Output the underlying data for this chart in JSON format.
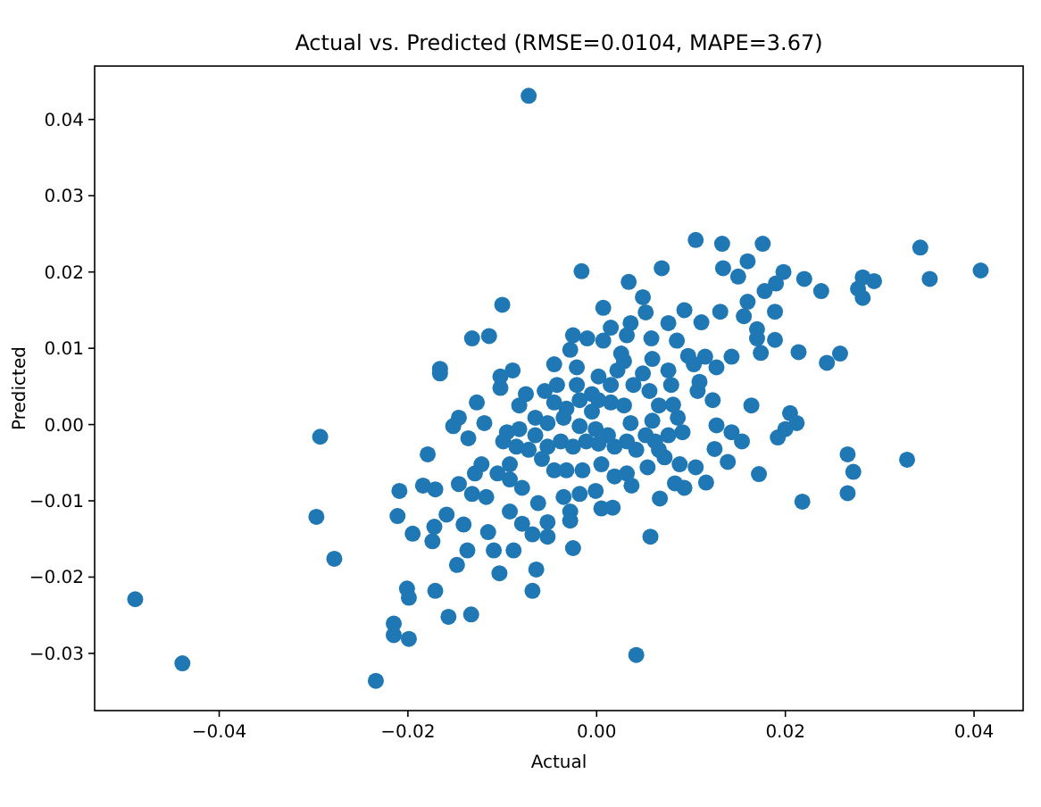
{
  "chart_data": {
    "type": "scatter",
    "title": "Actual vs. Predicted (RMSE=0.0104, MAPE=3.67)",
    "xlabel": "Actual",
    "ylabel": "Predicted",
    "marker": "circle",
    "xlim": [
      -0.0532,
      0.0452
    ],
    "ylim": [
      -0.0375,
      0.047
    ],
    "xticks": [
      {
        "value": -0.04,
        "label": "−0.04"
      },
      {
        "value": -0.02,
        "label": "−0.02"
      },
      {
        "value": 0,
        "label": "0.00"
      },
      {
        "value": 0.02,
        "label": "0.02"
      },
      {
        "value": 0.04,
        "label": "0.04"
      }
    ],
    "yticks": [
      {
        "value": -0.03,
        "label": "−0.03"
      },
      {
        "value": -0.02,
        "label": "−0.02"
      },
      {
        "value": -0.01,
        "label": "−0.01"
      },
      {
        "value": 0,
        "label": "0.00"
      },
      {
        "value": 0.01,
        "label": "0.01"
      },
      {
        "value": 0.02,
        "label": "0.02"
      },
      {
        "value": 0.03,
        "label": "0.03"
      },
      {
        "value": 0.04,
        "label": "0.04"
      }
    ],
    "series": [
      {
        "color": "#1f77b4",
        "x": [
          -0.0072,
          -0.0489,
          -0.0439,
          -0.0234,
          0.0042,
          -0.0293,
          -0.0297,
          -0.0278,
          0.0407,
          0.0343,
          0.0353,
          0.0329,
          0.0282,
          0.0294,
          0.0277,
          0.0282,
          0.0238,
          0.022,
          0.0198,
          0.019,
          0.0178,
          0.0176,
          0.016,
          0.015,
          0.0134,
          0.0133,
          0.0105,
          0.0069,
          0.0034,
          -0.0016,
          0.0049,
          0.0007,
          -0.01,
          -0.0132,
          -0.0114,
          -0.0166,
          -0.0166,
          0.0258,
          0.0244,
          0.0214,
          0.0189,
          0.0189,
          0.0174,
          0.017,
          0.016,
          0.0156,
          0.017,
          0.0131,
          0.0111,
          0.0093,
          0.0076,
          0.0085,
          0.0143,
          0.0127,
          0.0115,
          0.0103,
          0.0109,
          0.0123,
          0.0107,
          0.0164,
          0.0205,
          0.0212,
          0.0192,
          0.02,
          0.0154,
          0.0143,
          0.0127,
          0.0125,
          0.0139,
          0.0172,
          0.0116,
          0.0105,
          0.0093,
          0.0083,
          0.0067,
          0.0057,
          0.0218,
          0.0266,
          0.0272,
          0.0266,
          0.0088,
          0.0072,
          0.0054,
          0.0091,
          0.0086,
          0.0081,
          0.0079,
          0.0076,
          0.0059,
          0.0058,
          0.0052,
          0.0036,
          0.0032,
          0.0015,
          0.0007,
          -0.001,
          -0.0025,
          -0.0028,
          -0.0021,
          -0.0045,
          0.0026,
          0.0022,
          0.0002,
          0.0015,
          0.0039,
          0.0049,
          0.0056,
          0.0066,
          0.0059,
          0.0052,
          0.0062,
          0.0042,
          0.0032,
          0.0036,
          0.0029,
          0.0015,
          0.0002,
          -0.0005,
          -0.0018,
          -0.0032,
          -0.0045,
          -0.0055,
          -0.0065,
          -0.0052,
          -0.0035,
          -0.0018,
          -0.0001,
          0.0012,
          0.0019,
          0.0002,
          -0.0011,
          -0.0025,
          -0.0038,
          -0.0052,
          -0.0065,
          -0.0072,
          -0.0058,
          -0.0045,
          -0.0032,
          -0.0015,
          0.0005,
          0.0019,
          0.0032,
          0.0037,
          -0.0001,
          0.0005,
          0.0017,
          -0.0018,
          -0.0035,
          -0.0028,
          -0.0028,
          -0.0025,
          -0.0052,
          -0.0052,
          -0.0068,
          -0.0079,
          -0.0092,
          -0.0062,
          -0.0079,
          -0.0092,
          -0.0105,
          -0.0092,
          -0.0085,
          -0.0095,
          -0.0082,
          -0.0099,
          -0.0119,
          -0.0136,
          -0.0146,
          -0.0152,
          -0.0127,
          -0.0082,
          -0.0075,
          -0.0102,
          -0.0089,
          -0.0102,
          -0.0179,
          -0.0122,
          -0.0129,
          -0.0146,
          -0.0132,
          -0.0117,
          -0.0171,
          -0.0184,
          -0.0209,
          -0.0211,
          -0.0159,
          -0.0141,
          -0.0172,
          -0.0195,
          -0.0174,
          -0.0115,
          -0.0137,
          -0.0109,
          -0.0088,
          -0.0148,
          -0.0103,
          -0.0064,
          -0.0068,
          -0.0171,
          -0.0201,
          -0.0199,
          -0.0157,
          -0.0133,
          -0.0215,
          -0.0215,
          -0.0199,
          0.0097,
          0.0029,
          -0.0005,
          -0.0021,
          -0.0042,
          0.0076,
          0.0066
        ],
        "values": [
          0.0431,
          -0.0229,
          -0.0313,
          -0.0336,
          -0.0302,
          -0.0016,
          -0.0121,
          -0.0176,
          0.0202,
          0.0232,
          0.0191,
          -0.0046,
          0.0193,
          0.0188,
          0.0178,
          0.0166,
          0.0175,
          0.0191,
          0.02,
          0.0185,
          0.0175,
          0.0237,
          0.0214,
          0.0194,
          0.0205,
          0.0237,
          0.0242,
          0.0205,
          0.0187,
          0.0201,
          0.0167,
          0.0153,
          0.0157,
          0.0113,
          0.0116,
          0.0073,
          0.0067,
          0.0093,
          0.0081,
          0.0095,
          0.0148,
          0.0111,
          0.0094,
          0.0113,
          0.0161,
          0.0142,
          0.0125,
          0.0148,
          0.0134,
          0.015,
          0.0133,
          0.011,
          0.0089,
          0.0075,
          0.0089,
          0.0079,
          0.0056,
          0.0032,
          0.0044,
          0.0025,
          0.0015,
          0.0002,
          -0.0017,
          -0.0006,
          -0.0022,
          -0.001,
          -0.0001,
          -0.0032,
          -0.0049,
          -0.0065,
          -0.0076,
          -0.0056,
          -0.0083,
          -0.0077,
          -0.0097,
          -0.0147,
          -0.0101,
          -0.0039,
          -0.0062,
          -0.009,
          -0.0052,
          -0.0043,
          -0.0056,
          -0.001,
          0.0009,
          0.0026,
          0.0052,
          0.0071,
          0.0086,
          0.0113,
          0.0147,
          0.0133,
          0.0117,
          0.0127,
          0.011,
          0.0113,
          0.0117,
          0.0098,
          0.0075,
          0.0079,
          0.0093,
          0.0071,
          0.0063,
          0.0052,
          0.0052,
          0.0067,
          0.0044,
          0.0025,
          0.0005,
          -0.0014,
          -0.0022,
          -0.0033,
          -0.0022,
          0.0002,
          0.0025,
          0.0029,
          0.0032,
          0.0017,
          0.0032,
          0.0021,
          0.0029,
          0.0044,
          0.0009,
          0.0002,
          0.0009,
          -0.0002,
          -0.0006,
          -0.0014,
          -0.0029,
          -0.0025,
          -0.0022,
          -0.0029,
          -0.0022,
          -0.0029,
          -0.0014,
          -0.0033,
          -0.0045,
          -0.006,
          -0.006,
          -0.006,
          -0.0052,
          -0.0068,
          -0.0064,
          -0.008,
          -0.0087,
          -0.011,
          -0.0109,
          -0.0091,
          -0.0095,
          -0.0114,
          -0.0126,
          -0.0162,
          -0.0128,
          -0.0147,
          -0.0144,
          -0.013,
          -0.0114,
          -0.0103,
          -0.0083,
          -0.0072,
          -0.0064,
          -0.0052,
          -0.0029,
          -0.001,
          -0.0006,
          -0.0022,
          0.0002,
          -0.0018,
          0.0009,
          -0.0002,
          0.0029,
          0.0025,
          0.004,
          0.0048,
          0.0071,
          0.0063,
          -0.0039,
          -0.0052,
          -0.0064,
          -0.0078,
          -0.0091,
          -0.0095,
          -0.0085,
          -0.008,
          -0.0087,
          -0.012,
          -0.0118,
          -0.0131,
          -0.0134,
          -0.0143,
          -0.0153,
          -0.0141,
          -0.0165,
          -0.0165,
          -0.0165,
          -0.0184,
          -0.0195,
          -0.019,
          -0.0218,
          -0.0218,
          -0.0215,
          -0.0227,
          -0.0252,
          -0.0249,
          -0.0261,
          -0.0276,
          -0.0281,
          0.009,
          0.0083,
          0.004,
          0.0052,
          0.0052,
          -0.0014,
          -0.0033
        ]
      }
    ]
  }
}
